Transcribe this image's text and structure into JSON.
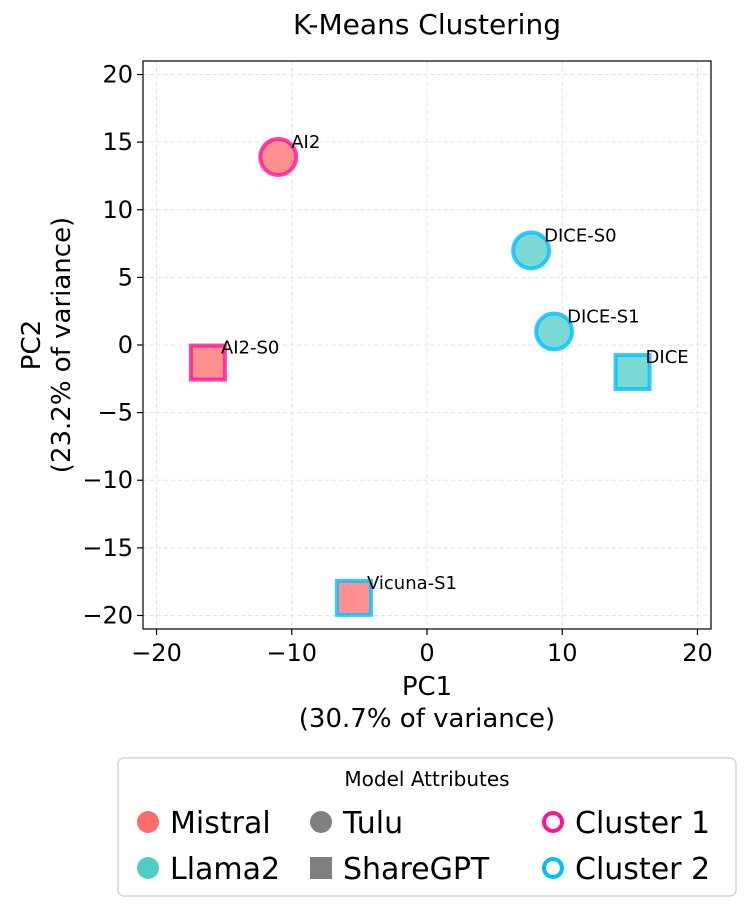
{
  "chart_data": {
    "type": "scatter",
    "title": "K-Means Clustering",
    "xlabel_line1": "PC1",
    "xlabel_line2": "(30.7% of variance)",
    "ylabel_line1": "PC2",
    "ylabel_line2": "(23.2% of variance)",
    "xlim": [
      -21,
      21
    ],
    "ylim": [
      -21,
      21
    ],
    "xticks": [
      -20,
      -10,
      0,
      10,
      20
    ],
    "yticks": [
      -20,
      -15,
      -10,
      -5,
      0,
      5,
      10,
      15,
      20
    ],
    "xtick_labels": [
      "−20",
      "−10",
      "0",
      "10",
      "20"
    ],
    "ytick_labels": [
      "−20",
      "−15",
      "−10",
      "−5",
      "0",
      "5",
      "10",
      "15",
      "20"
    ],
    "grid": true,
    "points": [
      {
        "label": "AI2",
        "x": -11.0,
        "y": 13.9,
        "base_model": "Mistral",
        "dataset": "Tulu",
        "cluster": "Cluster 1"
      },
      {
        "label": "AI2-S0",
        "x": -16.2,
        "y": -1.3,
        "base_model": "Mistral",
        "dataset": "ShareGPT",
        "cluster": "Cluster 1"
      },
      {
        "label": "DICE-S0",
        "x": 7.7,
        "y": 7.0,
        "base_model": "Llama2",
        "dataset": "Tulu",
        "cluster": "Cluster 2"
      },
      {
        "label": "DICE-S1",
        "x": 9.4,
        "y": 1.0,
        "base_model": "Llama2",
        "dataset": "Tulu",
        "cluster": "Cluster 2"
      },
      {
        "label": "DICE",
        "x": 15.2,
        "y": -2.0,
        "base_model": "Llama2",
        "dataset": "ShareGPT",
        "cluster": "Cluster 2"
      },
      {
        "label": "Vicuna-S1",
        "x": -5.4,
        "y": -18.7,
        "base_model": "Mistral",
        "dataset": "ShareGPT",
        "cluster": "Cluster 2"
      }
    ],
    "colors": {
      "Mistral": "#ff6b6b",
      "Llama2": "#4ecdc4",
      "Tulu": "#808080",
      "ShareGPT": "#808080",
      "Cluster 1": "#ff1493",
      "Cluster 2": "#00bfff"
    },
    "legend": {
      "title": "Model Attributes",
      "position": "bottom",
      "entries": [
        {
          "label": "Mistral",
          "marker": "circle-filled",
          "key": "Mistral"
        },
        {
          "label": "Llama2",
          "marker": "circle-filled",
          "key": "Llama2"
        },
        {
          "label": "Tulu",
          "marker": "circle-filled",
          "key": "Tulu"
        },
        {
          "label": "ShareGPT",
          "marker": "square-filled",
          "key": "ShareGPT"
        },
        {
          "label": "Cluster 1",
          "marker": "circle-outline",
          "key": "Cluster 1"
        },
        {
          "label": "Cluster 2",
          "marker": "circle-outline",
          "key": "Cluster 2"
        }
      ]
    }
  }
}
